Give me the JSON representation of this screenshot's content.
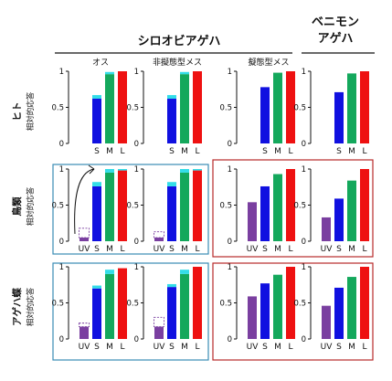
{
  "figure": {
    "group_headers": [
      "シロオビアゲハ",
      "ベニモン\nアゲハ"
    ],
    "column_titles": [
      "オス",
      "非擬態型メス",
      "擬態型メス",
      ""
    ],
    "row_titles": [
      "ヒト",
      "鳥類",
      "アゲハ蝶"
    ],
    "row_ylabel": "相対的応答",
    "y_ticks": [
      "0",
      "0.5",
      "1"
    ],
    "colors": {
      "UV": "#7a3fa0",
      "S": "#1010e0",
      "M": "#14a85c",
      "L": "#ee1111",
      "cap": "#33dde8",
      "blue_frame": "#3a8bb5",
      "red_frame": "#b82a2a"
    }
  },
  "chart_data": [
    {
      "type": "bar",
      "row": "ヒト",
      "column": "オス",
      "categories": [
        "S",
        "M",
        "L"
      ],
      "values": [
        0.62,
        0.96,
        1.0
      ],
      "caps": {
        "S": 0.05,
        "M": 0.03
      },
      "ylim": [
        0,
        1
      ]
    },
    {
      "type": "bar",
      "row": "ヒト",
      "column": "非擬態型メス",
      "categories": [
        "S",
        "M",
        "L"
      ],
      "values": [
        0.62,
        0.96,
        1.0
      ],
      "caps": {
        "S": 0.05,
        "M": 0.03
      },
      "ylim": [
        0,
        1
      ]
    },
    {
      "type": "bar",
      "row": "ヒト",
      "column": "擬態型メス",
      "categories": [
        "S",
        "M",
        "L"
      ],
      "values": [
        0.78,
        0.98,
        1.0
      ],
      "ylim": [
        0,
        1
      ]
    },
    {
      "type": "bar",
      "row": "ヒト",
      "column": "",
      "categories": [
        "S",
        "M",
        "L"
      ],
      "values": [
        0.71,
        0.97,
        1.0
      ],
      "ylim": [
        0,
        1
      ]
    },
    {
      "type": "bar",
      "row": "鳥類",
      "column": "オス",
      "categories": [
        "UV",
        "S",
        "M",
        "L"
      ],
      "values": [
        0.05,
        0.76,
        0.95,
        0.98
      ],
      "caps": {
        "S": 0.06,
        "M": 0.05,
        "L": 0.02
      },
      "dashed": {
        "UV": 0.18
      },
      "ylim": [
        0,
        1
      ]
    },
    {
      "type": "bar",
      "row": "鳥類",
      "column": "非擬態型メス",
      "categories": [
        "UV",
        "S",
        "M",
        "L"
      ],
      "values": [
        0.05,
        0.76,
        0.95,
        0.98
      ],
      "caps": {
        "S": 0.06,
        "M": 0.05,
        "L": 0.02
      },
      "dashed": {
        "UV": 0.13
      },
      "ylim": [
        0,
        1
      ]
    },
    {
      "type": "bar",
      "row": "鳥類",
      "column": "擬態型メス",
      "categories": [
        "UV",
        "S",
        "M",
        "L"
      ],
      "values": [
        0.54,
        0.76,
        0.93,
        1.0
      ],
      "ylim": [
        0,
        1
      ]
    },
    {
      "type": "bar",
      "row": "鳥類",
      "column": "",
      "categories": [
        "UV",
        "S",
        "M",
        "L"
      ],
      "values": [
        0.33,
        0.59,
        0.84,
        1.0
      ],
      "ylim": [
        0,
        1
      ]
    },
    {
      "type": "bar",
      "row": "アゲハ蝶",
      "column": "オス",
      "categories": [
        "UV",
        "S",
        "M",
        "L"
      ],
      "values": [
        0.17,
        0.7,
        0.9,
        0.98
      ],
      "caps": {
        "S": 0.04,
        "M": 0.06
      },
      "dashed": {
        "UV": 0.22
      },
      "ylim": [
        0,
        1
      ]
    },
    {
      "type": "bar",
      "row": "アゲハ蝶",
      "column": "非擬態型メス",
      "categories": [
        "UV",
        "S",
        "M",
        "L"
      ],
      "values": [
        0.17,
        0.72,
        0.9,
        1.0
      ],
      "caps": {
        "S": 0.04,
        "M": 0.06
      },
      "dashed": {
        "UV": 0.3
      },
      "ylim": [
        0,
        1
      ]
    },
    {
      "type": "bar",
      "row": "アゲハ蝶",
      "column": "擬態型メス",
      "categories": [
        "UV",
        "S",
        "M",
        "L"
      ],
      "values": [
        0.59,
        0.77,
        0.89,
        1.0
      ],
      "ylim": [
        0,
        1
      ]
    },
    {
      "type": "bar",
      "row": "アゲハ蝶",
      "column": "",
      "categories": [
        "UV",
        "S",
        "M",
        "L"
      ],
      "values": [
        0.46,
        0.71,
        0.86,
        1.0
      ],
      "ylim": [
        0,
        1
      ]
    }
  ]
}
